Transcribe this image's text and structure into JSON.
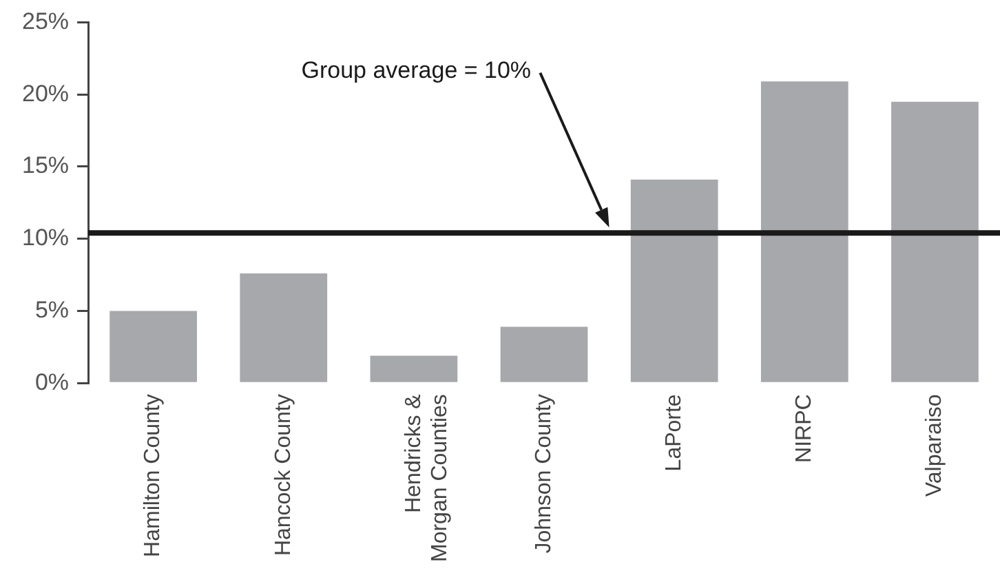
{
  "chart_data": {
    "type": "bar",
    "categories": [
      "Hamilton County",
      "Hancock County",
      "Hendricks &\nMorgan Counties",
      "Johnson County",
      "LaPorte",
      "NIRPC",
      "Valparaiso"
    ],
    "values": [
      5,
      7.6,
      1.9,
      3.9,
      14.1,
      20.9,
      19.5
    ],
    "color": "#a7a8ac",
    "ylim": [
      0,
      25
    ],
    "yticks": [
      {
        "value": 0,
        "label": "0%"
      },
      {
        "value": 5,
        "label": "5%"
      },
      {
        "value": 10,
        "label": "10%"
      },
      {
        "value": 15,
        "label": "15%"
      },
      {
        "value": 20,
        "label": "20%"
      },
      {
        "value": 25,
        "label": "25%"
      }
    ],
    "grid": false,
    "ref_lines": [
      {
        "axis": "y",
        "value": 10.4,
        "label": "Group average = 10%",
        "color": "#1a1a1a"
      }
    ]
  }
}
